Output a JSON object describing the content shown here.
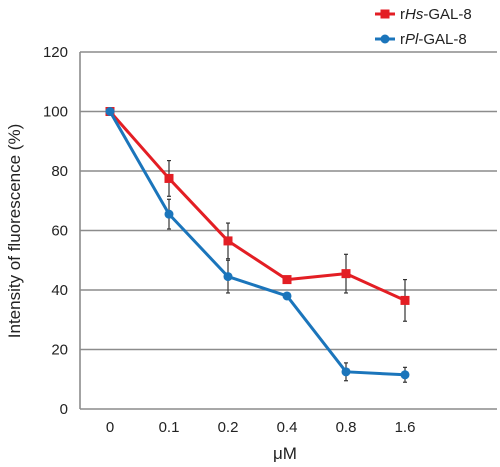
{
  "chart_data": {
    "type": "line",
    "title": "",
    "xlabel": "μM",
    "ylabel": "Intensity of fluorescence  (%)",
    "categories": [
      "0",
      "0.1",
      "0.2",
      "0.4",
      "0.8",
      "1.6"
    ],
    "ylim": [
      0,
      120
    ],
    "yticks": [
      "0",
      "20",
      "40",
      "60",
      "80",
      "100",
      "120"
    ],
    "ytick_values": [
      0,
      20,
      40,
      60,
      80,
      100,
      120
    ],
    "grid": true,
    "legend_position": "top-right",
    "series": [
      {
        "name": "rHs-GAL-8",
        "name_prefix": "r",
        "name_italic": "Hs",
        "name_suffix": "-GAL-8",
        "color": "#e31e24",
        "marker": "square",
        "values": [
          100,
          77.5,
          56.5,
          43.5,
          45.5,
          36.5
        ],
        "errors": [
          0,
          6,
          6,
          0,
          6.5,
          7
        ]
      },
      {
        "name": "rPl-GAL-8",
        "name_prefix": "r",
        "name_italic": "Pl",
        "name_suffix": "-GAL-8",
        "color": "#1b75bb",
        "marker": "diamond",
        "values": [
          100,
          65.5,
          44.5,
          38,
          12.5,
          11.5
        ],
        "errors": [
          0,
          5,
          5.5,
          0,
          3,
          2.5
        ]
      }
    ]
  }
}
